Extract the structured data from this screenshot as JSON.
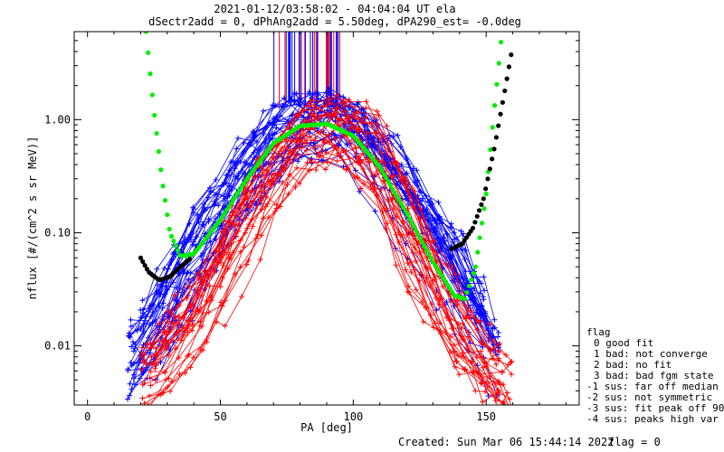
{
  "chart_data": {
    "type": "line",
    "title_line1": "2021-01-12/03:58:02 - 04:04:04 UT ela",
    "title_line2": "dSectr2add = 0, dPhAng2add = 5.50deg, dPA290_est=  -0.0deg",
    "xlabel": "PA [deg]",
    "ylabel": "nflux [#/(cm^2 s sr MeV)]",
    "xlim": [
      -5,
      185
    ],
    "ylim": [
      0.003,
      6
    ],
    "yscale": "log",
    "grid": false,
    "x_ticks": [
      0,
      50,
      100,
      150
    ],
    "x_tick_labels": [
      "0",
      "50",
      "100",
      "150"
    ],
    "y_ticks": [
      0.01,
      0.1,
      1.0
    ],
    "y_tick_labels": [
      "0.01",
      "0.10",
      "1.00"
    ],
    "colors": {
      "blue": "#0000ff",
      "red": "#ff0000",
      "green": "#00ee00",
      "black": "#000000"
    },
    "series": [
      {
        "color": "blue",
        "style": "lines+plus",
        "x": [
          15,
          25,
          40,
          55,
          65,
          75,
          85,
          90,
          95,
          105,
          115,
          125,
          135,
          145,
          155
        ],
        "y": [
          0.006,
          0.013,
          0.06,
          0.2,
          0.45,
          0.7,
          0.9,
          0.95,
          0.88,
          0.6,
          0.3,
          0.13,
          0.06,
          0.02,
          0.008
        ]
      },
      {
        "color": "red",
        "style": "lines+plus",
        "x": [
          20,
          30,
          45,
          60,
          70,
          80,
          90,
          100,
          110,
          120,
          130,
          140,
          150,
          160
        ],
        "y": [
          0.005,
          0.009,
          0.03,
          0.15,
          0.35,
          0.65,
          0.9,
          0.75,
          0.35,
          0.1,
          0.03,
          0.012,
          0.006,
          0.004
        ]
      },
      {
        "color": "green",
        "style": "thick-dotted",
        "x": [
          22,
          25,
          28,
          31,
          35,
          40,
          50,
          60,
          70,
          80,
          90,
          100,
          110,
          120,
          130,
          138,
          142,
          146,
          150,
          153,
          156
        ],
        "y": [
          6,
          1.2,
          0.3,
          0.1,
          0.062,
          0.065,
          0.13,
          0.3,
          0.62,
          0.88,
          0.92,
          0.72,
          0.38,
          0.15,
          0.055,
          0.028,
          0.026,
          0.05,
          0.22,
          1.2,
          6
        ]
      },
      {
        "color": "black",
        "style": "thick-dotted",
        "x": [
          20,
          23,
          27,
          31,
          35,
          39
        ],
        "y": [
          0.06,
          0.045,
          0.038,
          0.041,
          0.05,
          0.06
        ]
      },
      {
        "color": "black",
        "style": "thick-dotted",
        "x": [
          137,
          141,
          145,
          149,
          153,
          157,
          160
        ],
        "y": [
          0.072,
          0.08,
          0.11,
          0.2,
          0.55,
          1.8,
          4.5
        ]
      }
    ],
    "legend": {
      "position": "right",
      "title": "flag",
      "entries": [
        "0 good fit",
        "1 bad: not converge",
        "2 bad: no fit",
        "3 bad: bad fgm state",
        "-1 sus: far off median",
        "-2 sus: not symmetric",
        "-3 sus: fit peak off 90",
        "-4 sus: peaks high var"
      ]
    },
    "footer_created": "Created: Sun Mar 06 15:44:14 2022",
    "footer_flag": "flag = 0"
  }
}
